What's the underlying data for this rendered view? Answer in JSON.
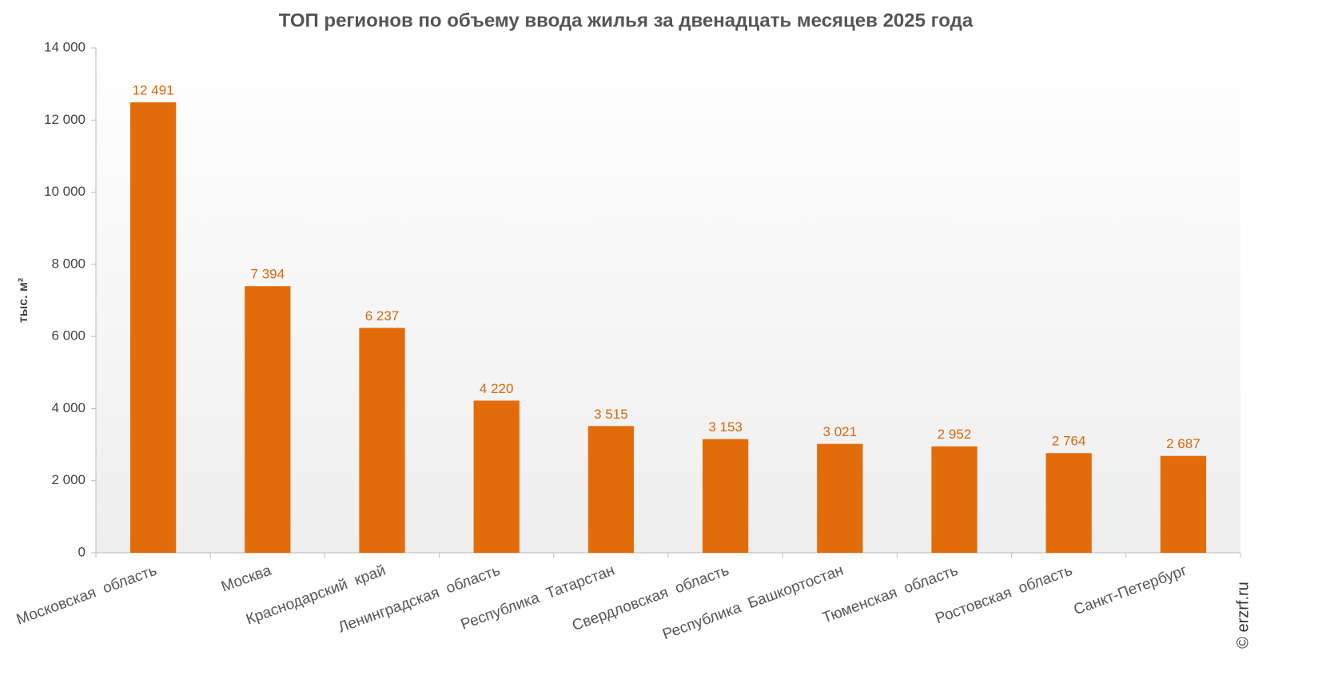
{
  "chart_data": {
    "type": "bar",
    "title": "ТОП регионов по объему ввода жилья за двенадцать месяцев 2025 года",
    "y_label": "тыс. м²",
    "watermark": "© erzrf.ru",
    "categories": [
      "Московская  область",
      "Москва",
      "Краснодарский  край",
      "Ленинградская  область",
      "Республика  Татарстан",
      "Свердловская  область",
      "Республика  Башкортостан",
      "Тюменская  область",
      "Ростовская  область",
      "Санкт-Петербург"
    ],
    "values": [
      12491,
      7394,
      6237,
      4220,
      3515,
      3153,
      3021,
      2952,
      2764,
      2687
    ],
    "value_labels": [
      "12 491",
      "7 394",
      "6 237",
      "4 220",
      "3 515",
      "3 153",
      "3 021",
      "2 952",
      "2 764",
      "2 687"
    ],
    "color": "#e36c0a",
    "ylim": [
      0,
      14000
    ],
    "yticks": [
      0,
      {
        "value": 2000,
        "label": "2 000"
      },
      {
        "value": 4000,
        "label": "4 000"
      },
      {
        "value": 6000,
        "label": "6 000"
      },
      {
        "value": 8000,
        "label": "8 000"
      },
      {
        "value": 10000,
        "label": "10 000"
      },
      {
        "value": 12000,
        "label": "12 000"
      },
      {
        "value": 14000,
        "label": "14 000"
      }
    ],
    "grid": false
  }
}
